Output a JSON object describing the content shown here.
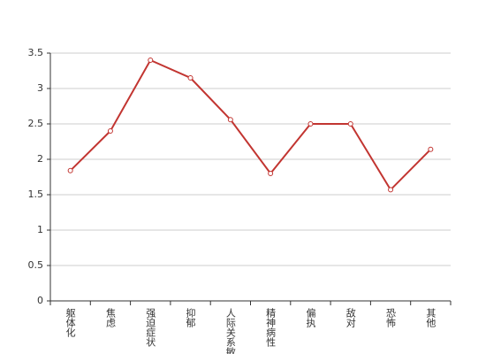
{
  "chart_data": {
    "type": "line",
    "categories": [
      "躯体化",
      "焦虑",
      "强迫症状",
      "抑郁",
      "人际关系敏感",
      "精神病性",
      "偏执",
      "敌对",
      "恐怖",
      "其他"
    ],
    "values": [
      1.84,
      2.4,
      3.4,
      3.15,
      2.56,
      1.8,
      2.5,
      2.5,
      1.57,
      2.14
    ],
    "color": "#c23531",
    "ylim": [
      0,
      3.5
    ],
    "yticks": [
      0,
      0.5,
      1,
      1.5,
      2,
      2.5,
      3,
      3.5
    ],
    "grid": true
  }
}
